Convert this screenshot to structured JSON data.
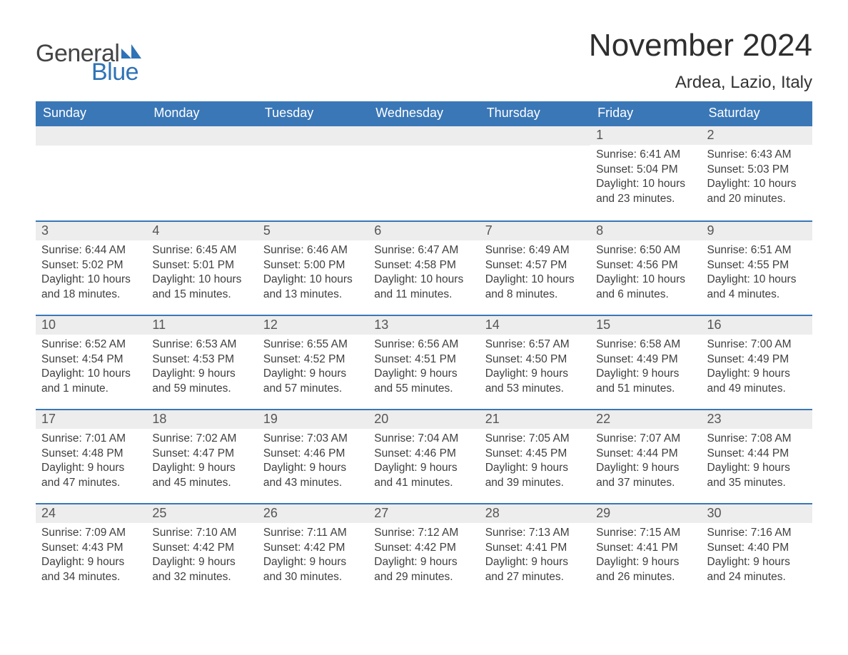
{
  "logo": {
    "word1": "General",
    "word2": "Blue",
    "gray": "#444444",
    "blue": "#2f73b6"
  },
  "title": "November 2024",
  "location": "Ardea, Lazio, Italy",
  "header_bg": "#3a77b7",
  "header_fg": "#ffffff",
  "daynum_bg": "#ededed",
  "daynum_border": "#3a77b7",
  "text_color": "#3f3f3f",
  "day_headers": [
    "Sunday",
    "Monday",
    "Tuesday",
    "Wednesday",
    "Thursday",
    "Friday",
    "Saturday"
  ],
  "weeks": [
    [
      null,
      null,
      null,
      null,
      null,
      {
        "n": "1",
        "sunrise": "Sunrise: 6:41 AM",
        "sunset": "Sunset: 5:04 PM",
        "d1": "Daylight: 10 hours",
        "d2": "and 23 minutes."
      },
      {
        "n": "2",
        "sunrise": "Sunrise: 6:43 AM",
        "sunset": "Sunset: 5:03 PM",
        "d1": "Daylight: 10 hours",
        "d2": "and 20 minutes."
      }
    ],
    [
      {
        "n": "3",
        "sunrise": "Sunrise: 6:44 AM",
        "sunset": "Sunset: 5:02 PM",
        "d1": "Daylight: 10 hours",
        "d2": "and 18 minutes."
      },
      {
        "n": "4",
        "sunrise": "Sunrise: 6:45 AM",
        "sunset": "Sunset: 5:01 PM",
        "d1": "Daylight: 10 hours",
        "d2": "and 15 minutes."
      },
      {
        "n": "5",
        "sunrise": "Sunrise: 6:46 AM",
        "sunset": "Sunset: 5:00 PM",
        "d1": "Daylight: 10 hours",
        "d2": "and 13 minutes."
      },
      {
        "n": "6",
        "sunrise": "Sunrise: 6:47 AM",
        "sunset": "Sunset: 4:58 PM",
        "d1": "Daylight: 10 hours",
        "d2": "and 11 minutes."
      },
      {
        "n": "7",
        "sunrise": "Sunrise: 6:49 AM",
        "sunset": "Sunset: 4:57 PM",
        "d1": "Daylight: 10 hours",
        "d2": "and 8 minutes."
      },
      {
        "n": "8",
        "sunrise": "Sunrise: 6:50 AM",
        "sunset": "Sunset: 4:56 PM",
        "d1": "Daylight: 10 hours",
        "d2": "and 6 minutes."
      },
      {
        "n": "9",
        "sunrise": "Sunrise: 6:51 AM",
        "sunset": "Sunset: 4:55 PM",
        "d1": "Daylight: 10 hours",
        "d2": "and 4 minutes."
      }
    ],
    [
      {
        "n": "10",
        "sunrise": "Sunrise: 6:52 AM",
        "sunset": "Sunset: 4:54 PM",
        "d1": "Daylight: 10 hours",
        "d2": "and 1 minute."
      },
      {
        "n": "11",
        "sunrise": "Sunrise: 6:53 AM",
        "sunset": "Sunset: 4:53 PM",
        "d1": "Daylight: 9 hours",
        "d2": "and 59 minutes."
      },
      {
        "n": "12",
        "sunrise": "Sunrise: 6:55 AM",
        "sunset": "Sunset: 4:52 PM",
        "d1": "Daylight: 9 hours",
        "d2": "and 57 minutes."
      },
      {
        "n": "13",
        "sunrise": "Sunrise: 6:56 AM",
        "sunset": "Sunset: 4:51 PM",
        "d1": "Daylight: 9 hours",
        "d2": "and 55 minutes."
      },
      {
        "n": "14",
        "sunrise": "Sunrise: 6:57 AM",
        "sunset": "Sunset: 4:50 PM",
        "d1": "Daylight: 9 hours",
        "d2": "and 53 minutes."
      },
      {
        "n": "15",
        "sunrise": "Sunrise: 6:58 AM",
        "sunset": "Sunset: 4:49 PM",
        "d1": "Daylight: 9 hours",
        "d2": "and 51 minutes."
      },
      {
        "n": "16",
        "sunrise": "Sunrise: 7:00 AM",
        "sunset": "Sunset: 4:49 PM",
        "d1": "Daylight: 9 hours",
        "d2": "and 49 minutes."
      }
    ],
    [
      {
        "n": "17",
        "sunrise": "Sunrise: 7:01 AM",
        "sunset": "Sunset: 4:48 PM",
        "d1": "Daylight: 9 hours",
        "d2": "and 47 minutes."
      },
      {
        "n": "18",
        "sunrise": "Sunrise: 7:02 AM",
        "sunset": "Sunset: 4:47 PM",
        "d1": "Daylight: 9 hours",
        "d2": "and 45 minutes."
      },
      {
        "n": "19",
        "sunrise": "Sunrise: 7:03 AM",
        "sunset": "Sunset: 4:46 PM",
        "d1": "Daylight: 9 hours",
        "d2": "and 43 minutes."
      },
      {
        "n": "20",
        "sunrise": "Sunrise: 7:04 AM",
        "sunset": "Sunset: 4:46 PM",
        "d1": "Daylight: 9 hours",
        "d2": "and 41 minutes."
      },
      {
        "n": "21",
        "sunrise": "Sunrise: 7:05 AM",
        "sunset": "Sunset: 4:45 PM",
        "d1": "Daylight: 9 hours",
        "d2": "and 39 minutes."
      },
      {
        "n": "22",
        "sunrise": "Sunrise: 7:07 AM",
        "sunset": "Sunset: 4:44 PM",
        "d1": "Daylight: 9 hours",
        "d2": "and 37 minutes."
      },
      {
        "n": "23",
        "sunrise": "Sunrise: 7:08 AM",
        "sunset": "Sunset: 4:44 PM",
        "d1": "Daylight: 9 hours",
        "d2": "and 35 minutes."
      }
    ],
    [
      {
        "n": "24",
        "sunrise": "Sunrise: 7:09 AM",
        "sunset": "Sunset: 4:43 PM",
        "d1": "Daylight: 9 hours",
        "d2": "and 34 minutes."
      },
      {
        "n": "25",
        "sunrise": "Sunrise: 7:10 AM",
        "sunset": "Sunset: 4:42 PM",
        "d1": "Daylight: 9 hours",
        "d2": "and 32 minutes."
      },
      {
        "n": "26",
        "sunrise": "Sunrise: 7:11 AM",
        "sunset": "Sunset: 4:42 PM",
        "d1": "Daylight: 9 hours",
        "d2": "and 30 minutes."
      },
      {
        "n": "27",
        "sunrise": "Sunrise: 7:12 AM",
        "sunset": "Sunset: 4:42 PM",
        "d1": "Daylight: 9 hours",
        "d2": "and 29 minutes."
      },
      {
        "n": "28",
        "sunrise": "Sunrise: 7:13 AM",
        "sunset": "Sunset: 4:41 PM",
        "d1": "Daylight: 9 hours",
        "d2": "and 27 minutes."
      },
      {
        "n": "29",
        "sunrise": "Sunrise: 7:15 AM",
        "sunset": "Sunset: 4:41 PM",
        "d1": "Daylight: 9 hours",
        "d2": "and 26 minutes."
      },
      {
        "n": "30",
        "sunrise": "Sunrise: 7:16 AM",
        "sunset": "Sunset: 4:40 PM",
        "d1": "Daylight: 9 hours",
        "d2": "and 24 minutes."
      }
    ]
  ]
}
